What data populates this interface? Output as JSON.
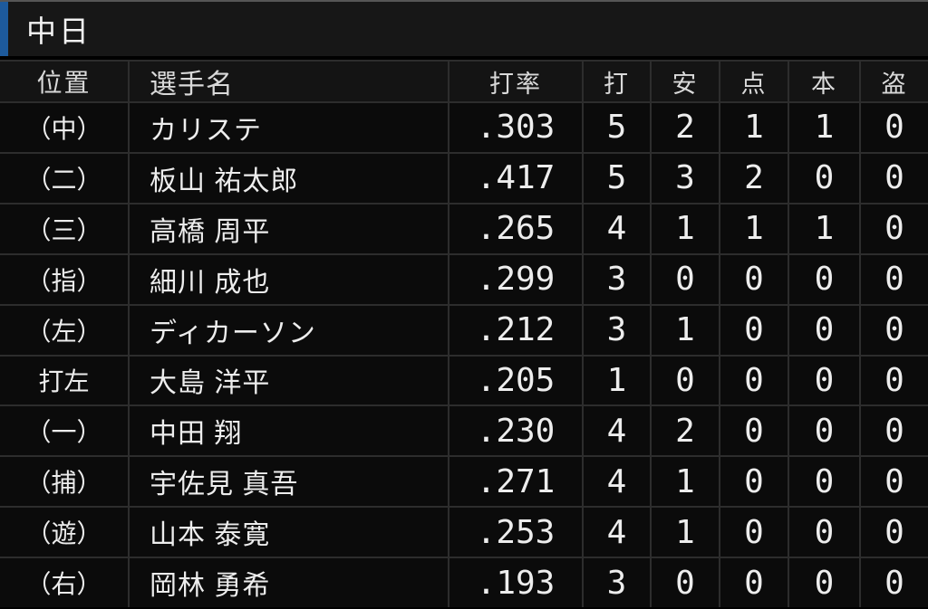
{
  "title_bar": {
    "team_name": "中日"
  },
  "colors": {
    "accent_blue": "#1d5a9c",
    "grid_line": "#2d2d2d",
    "cell_background": "#0b0b0b",
    "title_bar_background": "#171717",
    "text": "#ededed"
  },
  "table": {
    "columns": [
      {
        "key": "position",
        "label": "位置",
        "numeric": false
      },
      {
        "key": "player",
        "label": "選手名",
        "numeric": false
      },
      {
        "key": "avg",
        "label": "打率",
        "numeric": true
      },
      {
        "key": "ab",
        "label": "打",
        "numeric": true
      },
      {
        "key": "hits",
        "label": "安",
        "numeric": true
      },
      {
        "key": "rbi",
        "label": "点",
        "numeric": true
      },
      {
        "key": "hr",
        "label": "本",
        "numeric": true
      },
      {
        "key": "sb",
        "label": "盗",
        "numeric": true
      }
    ],
    "rows": [
      {
        "position": "（中）",
        "player": "カリステ",
        "avg": ".303",
        "ab": "5",
        "hits": "2",
        "rbi": "1",
        "hr": "1",
        "sb": "0"
      },
      {
        "position": "（二）",
        "player": "板山 祐太郎",
        "avg": ".417",
        "ab": "5",
        "hits": "3",
        "rbi": "2",
        "hr": "0",
        "sb": "0"
      },
      {
        "position": "（三）",
        "player": "高橋 周平",
        "avg": ".265",
        "ab": "4",
        "hits": "1",
        "rbi": "1",
        "hr": "1",
        "sb": "0"
      },
      {
        "position": "（指）",
        "player": "細川 成也",
        "avg": ".299",
        "ab": "3",
        "hits": "0",
        "rbi": "0",
        "hr": "0",
        "sb": "0"
      },
      {
        "position": "（左）",
        "player": "ディカーソン",
        "avg": ".212",
        "ab": "3",
        "hits": "1",
        "rbi": "0",
        "hr": "0",
        "sb": "0"
      },
      {
        "position": "打左",
        "player": "大島 洋平",
        "avg": ".205",
        "ab": "1",
        "hits": "0",
        "rbi": "0",
        "hr": "0",
        "sb": "0"
      },
      {
        "position": "（一）",
        "player": "中田 翔",
        "avg": ".230",
        "ab": "4",
        "hits": "2",
        "rbi": "0",
        "hr": "0",
        "sb": "0"
      },
      {
        "position": "（捕）",
        "player": "宇佐見 真吾",
        "avg": ".271",
        "ab": "4",
        "hits": "1",
        "rbi": "0",
        "hr": "0",
        "sb": "0"
      },
      {
        "position": "（遊）",
        "player": "山本 泰寛",
        "avg": ".253",
        "ab": "4",
        "hits": "1",
        "rbi": "0",
        "hr": "0",
        "sb": "0"
      },
      {
        "position": "（右）",
        "player": "岡林 勇希",
        "avg": ".193",
        "ab": "3",
        "hits": "0",
        "rbi": "0",
        "hr": "0",
        "sb": "0"
      }
    ]
  }
}
